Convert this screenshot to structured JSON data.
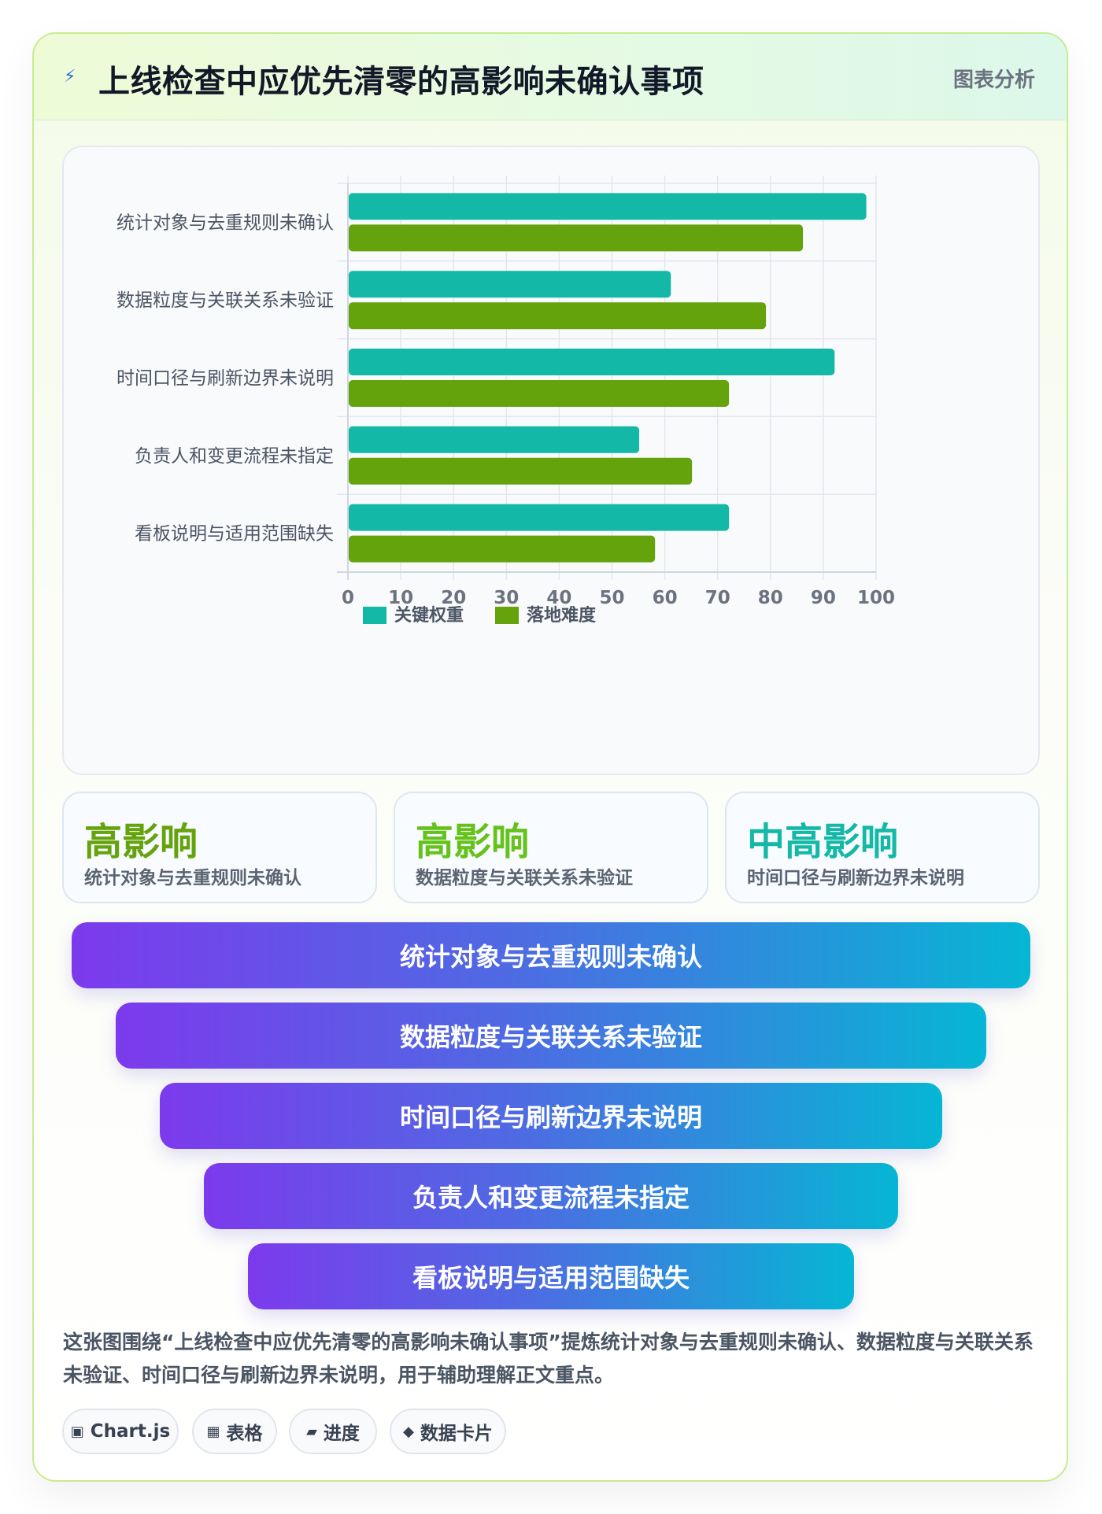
{
  "header": {
    "bolt_icon": "lightning-icon",
    "title": "上线检查中应优先清零的高影响未确认事项",
    "tag": "图表分析"
  },
  "chart_data": {
    "type": "bar",
    "orientation": "horizontal",
    "categories": [
      "统计对象与去重规则未确认",
      "数据粒度与关联关系未验证",
      "时间口径与刷新边界未说明",
      "负责人和变更流程未指定",
      "看板说明与适用范围缺失"
    ],
    "series": [
      {
        "name": "关键权重",
        "color": "#14b8a6",
        "values": [
          98,
          61,
          92,
          55,
          72
        ]
      },
      {
        "name": "落地难度",
        "color": "#65a30d",
        "values": [
          86,
          79,
          72,
          65,
          58
        ]
      }
    ],
    "xlim": [
      0,
      100
    ],
    "xticks": [
      "0",
      "10",
      "20",
      "30",
      "40",
      "50",
      "60",
      "70",
      "80",
      "90",
      "100"
    ],
    "grid": true,
    "legend_position": "bottom"
  },
  "stats": [
    {
      "level": "高影响",
      "desc": "统计对象与去重规则未确认",
      "color": "#65a30d"
    },
    {
      "level": "高影响",
      "desc": "数据粒度与关联关系未验证",
      "color": "#65c21a"
    },
    {
      "level": "中高影响",
      "desc": "时间口径与刷新边界未说明",
      "color": "#14b8a6"
    }
  ],
  "funnel": [
    "统计对象与去重规则未确认",
    "数据粒度与关联关系未验证",
    "时间口径与刷新边界未说明",
    "负责人和变更流程未指定",
    "看板说明与适用范围缺失"
  ],
  "summary": "这张图围绕“上线检查中应优先清零的高影响未确认事项”提炼统计对象与去重规则未确认、数据粒度与关联关系未验证、时间口径与刷新边界未说明，用于辅助理解正文重点。",
  "chips": [
    {
      "icon": "▣",
      "icon_name": "chart-icon",
      "label": "Chart.js"
    },
    {
      "icon": "▦",
      "icon_name": "table-icon",
      "label": "表格"
    },
    {
      "icon": "▰",
      "icon_name": "progress-icon",
      "label": "进度"
    },
    {
      "icon": "◆",
      "icon_name": "diamond-icon",
      "label": "数据卡片"
    }
  ]
}
